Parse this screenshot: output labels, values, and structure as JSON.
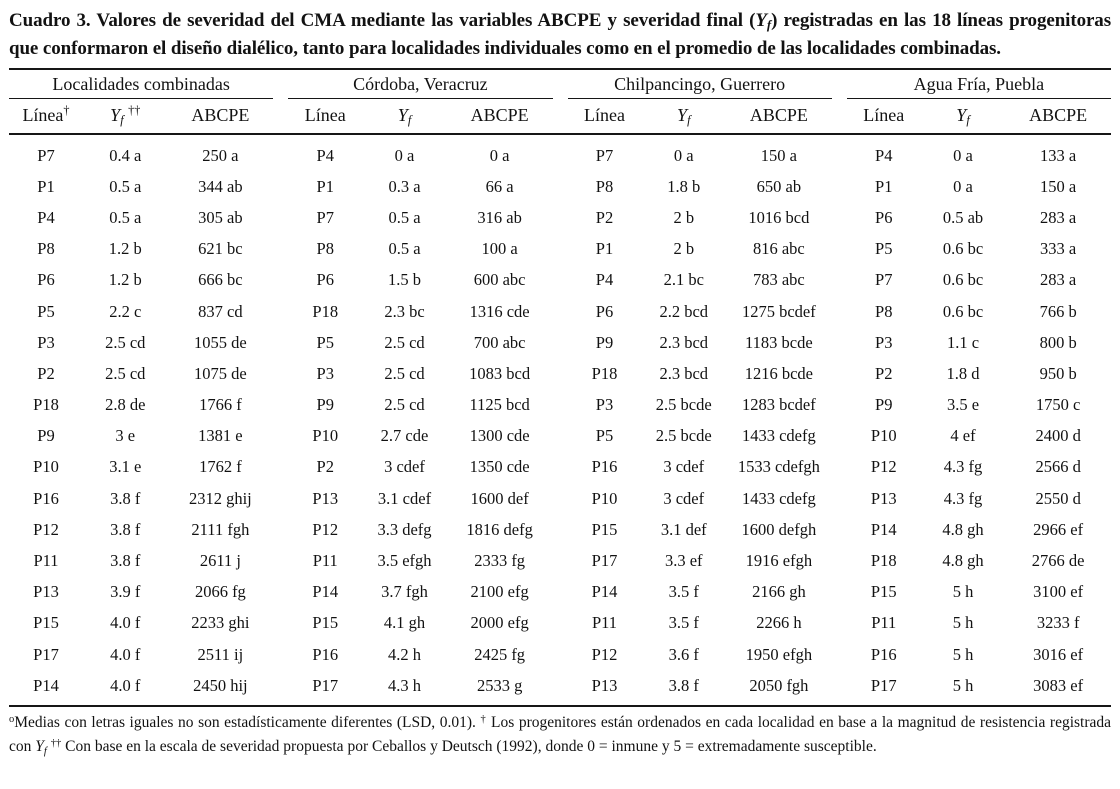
{
  "title": {
    "segments": [
      {
        "t": "text",
        "v": "Cuadro 3. Valores de severidad del CMA mediante las variables ABCPE y severidad final ("
      },
      {
        "t": "text",
        "v": "Y",
        "var": true
      },
      {
        "t": "sub",
        "v": "f",
        "var": true
      },
      {
        "t": "text",
        "v": ") registradas en las 18 líneas progenitoras que conformaron el diseño dialélico, tanto para localidades individuales como en el promedio de las localidades combinadas."
      }
    ]
  },
  "table": {
    "groups": [
      {
        "name": "Localidades combinadas",
        "columns": [
          {
            "segments": [
              {
                "t": "text",
                "v": "Línea"
              },
              {
                "t": "sup",
                "v": "†"
              }
            ]
          },
          {
            "segments": [
              {
                "t": "text",
                "v": "Y",
                "var": true
              },
              {
                "t": "sub",
                "v": "f",
                "var": true
              },
              {
                "t": "text",
                "v": " "
              },
              {
                "t": "sup",
                "v": "††"
              }
            ]
          },
          {
            "segments": [
              {
                "t": "text",
                "v": "ABCPE"
              }
            ]
          }
        ],
        "rows": [
          [
            "P7",
            "0.4 a",
            "250 a"
          ],
          [
            "P1",
            "0.5 a",
            "344 ab"
          ],
          [
            "P4",
            "0.5 a",
            "305 ab"
          ],
          [
            "P8",
            "1.2 b",
            "621 bc"
          ],
          [
            "P6",
            "1.2 b",
            "666 bc"
          ],
          [
            "P5",
            "2.2 c",
            "837 cd"
          ],
          [
            "P3",
            "2.5 cd",
            "1055 de"
          ],
          [
            "P2",
            "2.5 cd",
            "1075 de"
          ],
          [
            "P18",
            "2.8 de",
            "1766 f"
          ],
          [
            "P9",
            "3 e",
            "1381 e"
          ],
          [
            "P10",
            "3.1 e",
            "1762 f"
          ],
          [
            "P16",
            "3.8 f",
            "2312 ghij"
          ],
          [
            "P12",
            "3.8 f",
            "2111 fgh"
          ],
          [
            "P11",
            "3.8 f",
            "2611 j"
          ],
          [
            "P13",
            "3.9 f",
            "2066 fg"
          ],
          [
            "P15",
            "4.0 f",
            "2233 ghi"
          ],
          [
            "P17",
            "4.0 f",
            "2511 ij"
          ],
          [
            "P14",
            "4.0 f",
            "2450 hij"
          ]
        ]
      },
      {
        "name": "Córdoba, Veracruz",
        "columns": [
          {
            "segments": [
              {
                "t": "text",
                "v": "Línea"
              }
            ]
          },
          {
            "segments": [
              {
                "t": "text",
                "v": "Y",
                "var": true
              },
              {
                "t": "sub",
                "v": "f",
                "var": true
              }
            ]
          },
          {
            "segments": [
              {
                "t": "text",
                "v": "ABCPE"
              }
            ]
          }
        ],
        "rows": [
          [
            "P4",
            "0 a",
            "0 a"
          ],
          [
            "P1",
            "0.3 a",
            "66 a"
          ],
          [
            "P7",
            "0.5 a",
            "316 ab"
          ],
          [
            "P8",
            "0.5 a",
            "100 a"
          ],
          [
            "P6",
            "1.5 b",
            "600 abc"
          ],
          [
            "P18",
            "2.3 bc",
            "1316 cde"
          ],
          [
            "P5",
            "2.5 cd",
            "700 abc"
          ],
          [
            "P3",
            "2.5 cd",
            "1083 bcd"
          ],
          [
            "P9",
            "2.5 cd",
            "1125 bcd"
          ],
          [
            "P10",
            "2.7 cde",
            "1300 cde"
          ],
          [
            "P2",
            "3 cdef",
            "1350 cde"
          ],
          [
            "P13",
            "3.1 cdef",
            "1600 def"
          ],
          [
            "P12",
            "3.3 defg",
            "1816 defg"
          ],
          [
            "P11",
            "3.5 efgh",
            "2333 fg"
          ],
          [
            "P14",
            "3.7 fgh",
            "2100 efg"
          ],
          [
            "P15",
            "4.1 gh",
            "2000 efg"
          ],
          [
            "P16",
            "4.2 h",
            "2425 fg"
          ],
          [
            "P17",
            "4.3 h",
            "2533 g"
          ]
        ]
      },
      {
        "name": "Chilpancingo, Guerrero",
        "columns": [
          {
            "segments": [
              {
                "t": "text",
                "v": "Línea"
              }
            ]
          },
          {
            "segments": [
              {
                "t": "text",
                "v": "Y",
                "var": true
              },
              {
                "t": "sub",
                "v": "f",
                "var": true
              }
            ]
          },
          {
            "segments": [
              {
                "t": "text",
                "v": "ABCPE"
              }
            ]
          }
        ],
        "rows": [
          [
            "P7",
            "0 a",
            "150 a"
          ],
          [
            "P8",
            "1.8 b",
            "650 ab"
          ],
          [
            "P2",
            "2 b",
            "1016 bcd"
          ],
          [
            "P1",
            "2 b",
            "816 abc"
          ],
          [
            "P4",
            "2.1 bc",
            "783 abc"
          ],
          [
            "P6",
            "2.2 bcd",
            "1275 bcdef"
          ],
          [
            "P9",
            "2.3 bcd",
            "1183 bcde"
          ],
          [
            "P18",
            "2.3 bcd",
            "1216 bcde"
          ],
          [
            "P3",
            "2.5 bcde",
            "1283 bcdef"
          ],
          [
            "P5",
            "2.5 bcde",
            "1433 cdefg"
          ],
          [
            "P16",
            "3 cdef",
            "1533 cdefgh"
          ],
          [
            "P10",
            "3 cdef",
            "1433 cdefg"
          ],
          [
            "P15",
            "3.1 def",
            "1600 defgh"
          ],
          [
            "P17",
            "3.3 ef",
            "1916 efgh"
          ],
          [
            "P14",
            "3.5 f",
            "2166 gh"
          ],
          [
            "P11",
            "3.5 f",
            "2266 h"
          ],
          [
            "P12",
            "3.6 f",
            "1950 efgh"
          ],
          [
            "P13",
            "3.8 f",
            "2050 fgh"
          ]
        ]
      },
      {
        "name": "Agua Fría, Puebla",
        "columns": [
          {
            "segments": [
              {
                "t": "text",
                "v": "Línea"
              }
            ]
          },
          {
            "segments": [
              {
                "t": "text",
                "v": "Y",
                "var": true
              },
              {
                "t": "sub",
                "v": "f",
                "var": true
              }
            ]
          },
          {
            "segments": [
              {
                "t": "text",
                "v": "ABCPE"
              }
            ]
          }
        ],
        "rows": [
          [
            "P4",
            "0 a",
            "133 a"
          ],
          [
            "P1",
            "0 a",
            "150 a"
          ],
          [
            "P6",
            "0.5 ab",
            "283 a"
          ],
          [
            "P5",
            "0.6 bc",
            "333 a"
          ],
          [
            "P7",
            "0.6 bc",
            "283 a"
          ],
          [
            "P8",
            "0.6 bc",
            "766 b"
          ],
          [
            "P3",
            "1.1 c",
            "800 b"
          ],
          [
            "P2",
            "1.8 d",
            "950 b"
          ],
          [
            "P9",
            "3.5 e",
            "1750 c"
          ],
          [
            "P10",
            "4 ef",
            "2400 d"
          ],
          [
            "P12",
            "4.3 fg",
            "2566 d"
          ],
          [
            "P13",
            "4.3 fg",
            "2550 d"
          ],
          [
            "P14",
            "4.8 gh",
            "2966 ef"
          ],
          [
            "P18",
            "4.8 gh",
            "2766 de"
          ],
          [
            "P15",
            "5 h",
            "3100 ef"
          ],
          [
            "P11",
            "5 h",
            "3233 f"
          ],
          [
            "P16",
            "5 h",
            "3016 ef"
          ],
          [
            "P17",
            "5 h",
            "3083 ef"
          ]
        ]
      }
    ]
  },
  "footnote": {
    "segments": [
      {
        "t": "sup",
        "v": "o"
      },
      {
        "t": "text",
        "v": "Medias con letras iguales no son estadísticamente diferentes (LSD, 0.01). "
      },
      {
        "t": "sup",
        "v": "†"
      },
      {
        "t": "text",
        "v": " Los progenitores están ordenados en cada localidad en base a la magnitud de resistencia registrada con "
      },
      {
        "t": "text",
        "v": "Y",
        "var": true
      },
      {
        "t": "sub",
        "v": "f",
        "var": true
      },
      {
        "t": "text",
        "v": " "
      },
      {
        "t": "sup",
        "v": "††"
      },
      {
        "t": "text",
        "v": " Con base en la escala de severidad propuesta por Ceballos y Deutsch (1992), donde 0 = inmune y 5 = extremadamente susceptible."
      }
    ]
  }
}
